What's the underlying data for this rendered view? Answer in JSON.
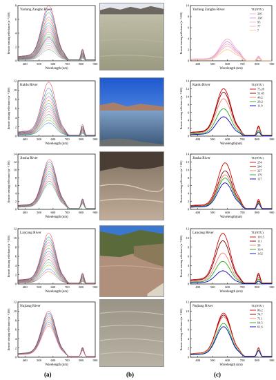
{
  "panel_labels": [
    "(a)",
    "(b)",
    "(c)"
  ],
  "axis_text": {
    "xlabel": "Wavelength (nm)",
    "xlabel_alt": "Wavelength(nm)",
    "ylabel": "Remote sensing reflectance (sr⁻¹/100)"
  },
  "colors": {
    "red": "#d40000",
    "darkred": "#7a0000",
    "salmon": "#f08070",
    "green": "#22aa22",
    "blue": "#0000c0",
    "pink": "#ff9fd0",
    "lightpink": "#ffb0c8",
    "lavender": "#c8a0f0"
  },
  "chart_data": [
    {
      "type": "line",
      "panel": "a",
      "title": "Yarlung Zangbo River",
      "xlim": [
        350,
        900
      ],
      "ylim": [
        0,
        8
      ],
      "xticks": [
        400,
        500,
        600,
        700,
        800,
        900
      ],
      "yticks": [
        0,
        2,
        4,
        6,
        8
      ],
      "peak_x": 570,
      "peaks": [
        7.8,
        7.3,
        6.8,
        6.2,
        5.8,
        5.4,
        5.0,
        4.7,
        4.4,
        4.1,
        3.8,
        3.5,
        3.3,
        3.1,
        2.8,
        2.5,
        2.2,
        1.9,
        1.6
      ]
    },
    {
      "type": "line",
      "panel": "a",
      "title": "Kaidu River",
      "xlim": [
        350,
        900
      ],
      "ylim": [
        0,
        12
      ],
      "xticks": [
        400,
        500,
        600,
        700,
        800,
        900
      ],
      "yticks": [
        0,
        2,
        4,
        6,
        8,
        10,
        12
      ],
      "peak_x": 570,
      "peaks": [
        11.5,
        10.2,
        9.2,
        8.4,
        7.6,
        7.0,
        6.4,
        5.8,
        5.2,
        4.6,
        4.0,
        3.4,
        2.8
      ]
    },
    {
      "type": "line",
      "panel": "a",
      "title": "Jinsha River",
      "xlim": [
        350,
        900
      ],
      "ylim": [
        0,
        14
      ],
      "xticks": [
        400,
        500,
        600,
        700,
        800,
        900
      ],
      "yticks": [
        0,
        2,
        4,
        6,
        8,
        10,
        12,
        14
      ],
      "peak_x": 575,
      "peaks": [
        12.4,
        11.8,
        11.2,
        10.6,
        10.0,
        9.4,
        8.8,
        8.2,
        7.6,
        7.0,
        6.4
      ]
    },
    {
      "type": "line",
      "panel": "a",
      "title": "Lancang River",
      "xlim": [
        350,
        900
      ],
      "ylim": [
        0,
        12
      ],
      "xticks": [
        400,
        500,
        600,
        700,
        800,
        900
      ],
      "yticks": [
        0,
        2,
        4,
        6,
        8,
        10,
        12
      ],
      "peak_x": 570,
      "peaks": [
        10.8,
        10.0,
        9.4,
        8.8,
        8.2,
        7.6,
        7.0,
        6.4,
        5.8,
        5.2,
        4.6,
        4.0,
        3.2,
        2.6
      ]
    },
    {
      "type": "line",
      "panel": "a",
      "title": "Nujiang River",
      "xlim": [
        350,
        900
      ],
      "ylim": [
        0,
        12
      ],
      "xticks": [
        400,
        500,
        600,
        700,
        800,
        900
      ],
      "yticks": [
        0,
        2,
        4,
        6,
        8,
        10,
        12
      ],
      "peak_x": 570,
      "peaks": [
        9.8,
        9.4,
        9.0,
        8.6,
        8.2,
        7.8,
        7.4,
        7.0,
        6.6
      ]
    },
    {
      "type": "line",
      "panel": "c",
      "title": "Yarlung Zangbo River",
      "legend_title": "TU(NTU)",
      "xlim": [
        350,
        900
      ],
      "ylim": [
        0,
        10
      ],
      "xticks": [
        400,
        500,
        600,
        700,
        800,
        900
      ],
      "yticks": [
        0,
        2,
        4,
        6,
        8,
        10
      ],
      "peak_x": 600,
      "series": [
        {
          "name": "205",
          "peak": 3.9,
          "color": "#ffa8c8"
        },
        {
          "name": "138",
          "peak": 3.4,
          "color": "#c8a0f0"
        },
        {
          "name": "95",
          "peak": 3.0,
          "color": "#ffb8b0"
        },
        {
          "name": "77",
          "peak": 2.6,
          "color": "#e8b8e0"
        },
        {
          "name": "7",
          "peak": 2.0,
          "color": "#ffc890"
        }
      ]
    },
    {
      "type": "line",
      "panel": "c",
      "title": "Kaidu River",
      "legend_title": "TU(NTU)",
      "xlim": [
        350,
        900
      ],
      "ylim": [
        0,
        14
      ],
      "xticks": [
        400,
        500,
        600,
        700,
        800,
        900
      ],
      "yticks": [
        0,
        2,
        4,
        6,
        8,
        10,
        12,
        14
      ],
      "peak_x": 575,
      "series": [
        {
          "name": "75.28",
          "peak": 11.8,
          "color": "#d40000"
        },
        {
          "name": "51.45",
          "peak": 10.9,
          "color": "#7a0000"
        },
        {
          "name": "40.2",
          "peak": 9.3,
          "color": "#f08070"
        },
        {
          "name": "29.2",
          "peak": 6.8,
          "color": "#22aa22"
        },
        {
          "name": "11.9",
          "peak": 4.8,
          "color": "#0000c0"
        }
      ]
    },
    {
      "type": "line",
      "panel": "c",
      "title": "Jinsha River",
      "legend_title": "TU(NTU)",
      "xlim": [
        350,
        900
      ],
      "ylim": [
        0,
        14
      ],
      "xticks": [
        400,
        500,
        600,
        700,
        800,
        900
      ],
      "yticks": [
        0,
        2,
        4,
        6,
        8,
        10,
        12,
        14
      ],
      "peak_x": 585,
      "series": [
        {
          "name": "254",
          "peak": 11.6,
          "color": "#d40000"
        },
        {
          "name": "240",
          "peak": 9.6,
          "color": "#7a0000"
        },
        {
          "name": "227",
          "peak": 8.6,
          "color": "#f08070"
        },
        {
          "name": "179",
          "peak": 7.8,
          "color": "#22aa22"
        },
        {
          "name": "127",
          "peak": 6.6,
          "color": "#0000c0"
        }
      ]
    },
    {
      "type": "line",
      "panel": "c",
      "title": "Lancang River",
      "legend_title": "TU(NTU)",
      "xlim": [
        350,
        900
      ],
      "ylim": [
        0,
        12
      ],
      "xticks": [
        400,
        500,
        600,
        700,
        800,
        900
      ],
      "yticks": [
        0,
        2,
        4,
        6,
        8,
        10,
        12
      ],
      "peak_x": 570,
      "series": [
        {
          "name": "101.5",
          "peak": 10.8,
          "color": "#d40000"
        },
        {
          "name": "111",
          "peak": 9.2,
          "color": "#7a0000"
        },
        {
          "name": "58",
          "peak": 6.6,
          "color": "#f08070"
        },
        {
          "name": "10.4",
          "peak": 4.8,
          "color": "#22aa22"
        },
        {
          "name": "1.62",
          "peak": 2.8,
          "color": "#0000c0"
        }
      ]
    },
    {
      "type": "line",
      "panel": "c",
      "title": "Nujiang River",
      "legend_title": "TU(NTU)",
      "xlim": [
        350,
        900
      ],
      "ylim": [
        0,
        12
      ],
      "xticks": [
        400,
        500,
        600,
        700,
        800,
        900
      ],
      "yticks": [
        0,
        2,
        4,
        6,
        8,
        10,
        12
      ],
      "peak_x": 575,
      "series": [
        {
          "name": "86.2",
          "peak": 9.4,
          "color": "#d40000"
        },
        {
          "name": "74.7",
          "peak": 9.0,
          "color": "#7a0000"
        },
        {
          "name": "71.1",
          "peak": 8.6,
          "color": "#f08070"
        },
        {
          "name": "64.5",
          "peak": 7.2,
          "color": "#22aa22"
        },
        {
          "name": "61.6",
          "peak": 6.5,
          "color": "#0000c0"
        }
      ]
    }
  ]
}
